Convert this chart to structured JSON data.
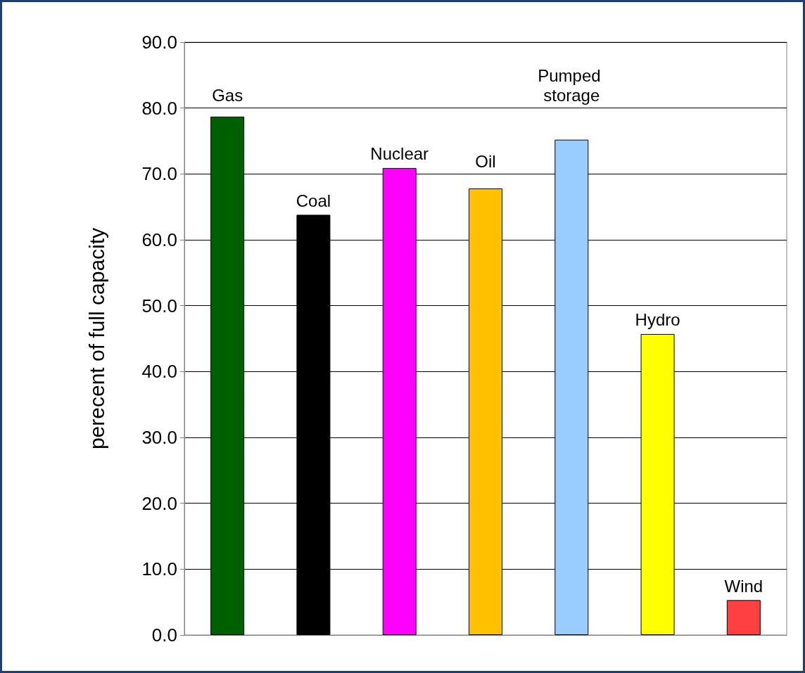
{
  "chart_data": {
    "type": "bar",
    "ylabel": "perecent of full capacity",
    "categories": [
      "Gas",
      "Coal",
      "Nuclear",
      "Oil",
      "Pumped storage",
      "Hydro",
      "Wind"
    ],
    "values": [
      78.7,
      63.8,
      70.9,
      67.8,
      75.2,
      45.7,
      5.3
    ],
    "colors": [
      "#006000",
      "#000000",
      "#ff00ff",
      "#ffc000",
      "#99ccff",
      "#ffff00",
      "#ff4040"
    ],
    "ylim": [
      0,
      90
    ],
    "yticks": [
      {
        "value": 0,
        "label": "0.0"
      },
      {
        "value": 10,
        "label": "10.0"
      },
      {
        "value": 20,
        "label": "20.0"
      },
      {
        "value": 30,
        "label": "30.0"
      },
      {
        "value": 40,
        "label": "40.0"
      },
      {
        "value": 50,
        "label": "50.0"
      },
      {
        "value": 60,
        "label": "60.0"
      },
      {
        "value": 70,
        "label": "70.0"
      },
      {
        "value": 80,
        "label": "80.0"
      },
      {
        "value": 90,
        "label": "90.0"
      }
    ],
    "grid": "y",
    "tick_labels": "y"
  }
}
